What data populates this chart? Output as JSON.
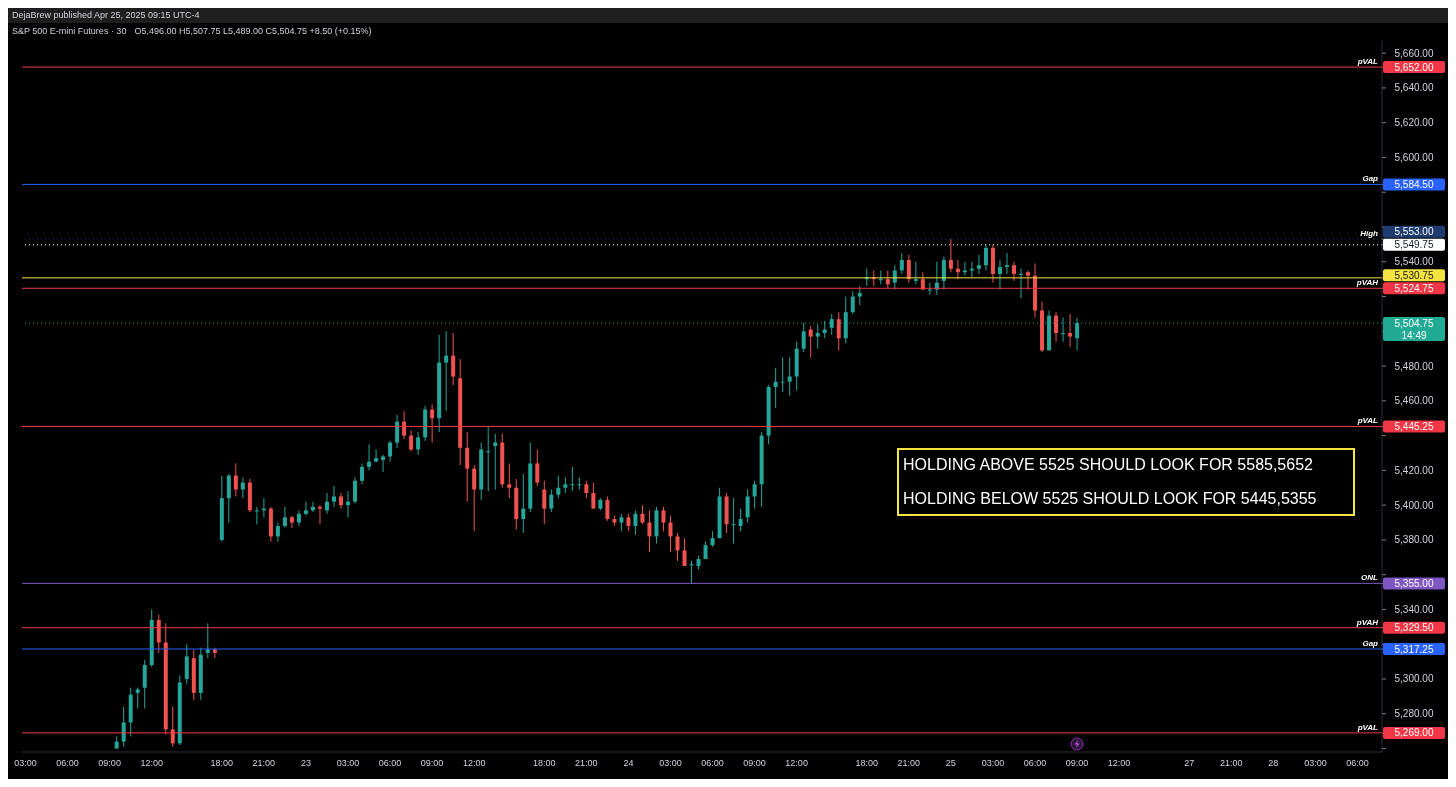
{
  "chart_data": {
    "type": "candlestick",
    "title": "S&P 500 E-mini Futures · 30",
    "subtitle": "O5,496.00 H5,507.75 L5,489.00 C5,504.75 +8.50 (+0.15%)",
    "annotations": [
      "DejaBrew published Apr 25, 2025 09:15 UTC-4",
      "HOLDING ABOVE 5525 SHOULD LOOK FOR 5585,5652",
      "HOLDING BELOW 5525 SHOULD LOOK FOR 5445,5355",
      "14:49"
    ],
    "categories": [
      "03:00",
      null,
      null,
      null,
      null,
      null,
      "06:00",
      null,
      null,
      null,
      null,
      null,
      "09:00",
      null,
      null,
      null,
      null,
      null,
      "12:00",
      null,
      null,
      null,
      null,
      null,
      null,
      null,
      null,
      null,
      "18:00",
      null,
      null,
      null,
      null,
      null,
      "21:00",
      null,
      null,
      null,
      null,
      null,
      "23",
      null,
      null,
      null,
      null,
      null,
      "03:00",
      null,
      null,
      null,
      null,
      null,
      "06:00",
      null,
      null,
      null,
      null,
      null,
      "09:00",
      null,
      null,
      null,
      null,
      null,
      "12:00",
      null,
      null,
      null,
      null,
      null,
      null,
      null,
      null,
      null,
      "18:00",
      null,
      null,
      null,
      null,
      null,
      "21:00",
      null,
      null,
      null,
      null,
      null,
      "24",
      null,
      null,
      null,
      null,
      null,
      "03:00",
      null,
      null,
      null,
      null,
      null,
      "06:00",
      null,
      null,
      null,
      null,
      null,
      "09:00",
      null,
      null,
      null,
      null,
      null,
      "12:00",
      null,
      null,
      null,
      null,
      null,
      null,
      null,
      null,
      null,
      "18:00",
      null,
      null,
      null,
      null,
      null,
      "21:00",
      null,
      null,
      null,
      null,
      null,
      "25",
      null,
      null,
      null,
      null,
      null,
      "03:00",
      null,
      null,
      null,
      null,
      null,
      "06:00",
      null,
      null,
      null,
      null,
      null,
      "09:00",
      null,
      null,
      null,
      null,
      null,
      "12:00",
      null,
      null,
      null,
      null,
      null,
      null,
      null,
      null,
      null,
      "27",
      null,
      null,
      null,
      null,
      null,
      "21:00",
      null,
      null,
      null,
      null,
      null,
      "28",
      null,
      null,
      null,
      null,
      null,
      "03:00",
      null,
      null,
      null,
      null,
      null,
      "06:00",
      null,
      null,
      null
    ],
    "ohlc": [
      null,
      null,
      null,
      null,
      null,
      null,
      null,
      null,
      null,
      null,
      null,
      null,
      null,
      [
        5260,
        5267,
        5260,
        5264
      ],
      [
        5264,
        5284,
        5261,
        5275
      ],
      [
        5275,
        5295,
        5267,
        5291
      ],
      [
        5292,
        5295,
        5283,
        5294
      ],
      [
        5295,
        5311,
        5283,
        5308
      ],
      [
        5308,
        5340,
        5307,
        5334
      ],
      [
        5334,
        5337,
        5315,
        5321
      ],
      [
        5321,
        5332,
        5268,
        5271
      ],
      [
        5271,
        5284,
        5261,
        5263
      ],
      [
        5263,
        5302,
        5262,
        5298
      ],
      [
        5300,
        5320,
        5297,
        5313
      ],
      [
        5312,
        5317,
        5288,
        5292
      ],
      [
        5292,
        5318,
        5288,
        5314
      ],
      [
        5315,
        5332,
        5312,
        5317
      ],
      [
        5317,
        5318,
        5312,
        5315
      ],
      [
        5380,
        5417,
        5379,
        5404
      ],
      [
        5404,
        5418,
        5390,
        5417
      ],
      [
        5417,
        5424,
        5405,
        5409
      ],
      [
        5409,
        5416,
        5404,
        5413
      ],
      [
        5413,
        5415,
        5396,
        5397
      ],
      [
        5397,
        5399,
        5389,
        5397
      ],
      [
        5397,
        5404,
        5393,
        5398
      ],
      [
        5398,
        5399,
        5379,
        5382
      ],
      [
        5382,
        5390,
        5379,
        5388
      ],
      [
        5388,
        5399,
        5387,
        5393
      ],
      [
        5393,
        5394,
        5387,
        5390
      ],
      [
        5390,
        5397,
        5388,
        5395
      ],
      [
        5395,
        5402,
        5394,
        5397
      ],
      [
        5397,
        5402,
        5396,
        5399
      ],
      [
        5399,
        5400,
        5389,
        5398
      ],
      [
        5397,
        5407,
        5395,
        5402
      ],
      [
        5402,
        5411,
        5399,
        5405
      ],
      [
        5405,
        5407,
        5398,
        5400
      ],
      [
        5400,
        5408,
        5393,
        5402
      ],
      [
        5402,
        5416,
        5401,
        5414
      ],
      [
        5414,
        5424,
        5412,
        5422
      ],
      [
        5422,
        5435,
        5420,
        5425
      ],
      [
        5425,
        5432,
        5425,
        5427
      ],
      [
        5426,
        5429,
        5419,
        5428
      ],
      [
        5428,
        5437,
        5425,
        5436
      ],
      [
        5436,
        5452,
        5433,
        5448
      ],
      [
        5448,
        5454,
        5438,
        5440
      ],
      [
        5440,
        5443,
        5431,
        5432
      ],
      [
        5432,
        5442,
        5429,
        5439
      ],
      [
        5439,
        5457,
        5437,
        5455
      ],
      [
        5455,
        5458,
        5436,
        5450
      ],
      [
        5450,
        5498,
        5442,
        5482
      ],
      [
        5482,
        5500,
        5454,
        5486
      ],
      [
        5486,
        5499,
        5469,
        5474
      ],
      [
        5473,
        5484,
        5423,
        5433
      ],
      [
        5433,
        5442,
        5402,
        5421
      ],
      [
        5421,
        5423,
        5385,
        5409
      ],
      [
        5409,
        5436,
        5403,
        5432
      ],
      [
        5431,
        5445,
        5408,
        5431
      ],
      [
        5434,
        5441,
        5409,
        5436
      ],
      [
        5436,
        5441,
        5410,
        5412
      ],
      [
        5412,
        5424,
        5404,
        5410
      ],
      [
        5410,
        5415,
        5386,
        5392
      ],
      [
        5392,
        5418,
        5384,
        5398
      ],
      [
        5398,
        5436,
        5396,
        5424
      ],
      [
        5424,
        5432,
        5411,
        5413
      ],
      [
        5409,
        5414,
        5389,
        5398
      ],
      [
        5398,
        5409,
        5396,
        5406
      ],
      [
        5406,
        5417,
        5404,
        5410
      ],
      [
        5410,
        5416,
        5407,
        5412
      ],
      [
        5412,
        5422,
        5408,
        5412
      ],
      [
        5412,
        5416,
        5409,
        5412
      ],
      [
        5412,
        5414,
        5404,
        5407
      ],
      [
        5407,
        5413,
        5398,
        5398
      ],
      [
        5398,
        5404,
        5397,
        5403
      ],
      [
        5403,
        5405,
        5391,
        5392
      ],
      [
        5392,
        5394,
        5388,
        5390
      ],
      [
        5390,
        5395,
        5385,
        5393
      ],
      [
        5393,
        5395,
        5385,
        5388
      ],
      [
        5388,
        5397,
        5383,
        5395
      ],
      [
        5395,
        5400,
        5389,
        5390
      ],
      [
        5390,
        5397,
        5373,
        5382
      ],
      [
        5382,
        5399,
        5378,
        5397
      ],
      [
        5397,
        5399,
        5385,
        5390
      ],
      [
        5390,
        5394,
        5373,
        5382
      ],
      [
        5382,
        5384,
        5368,
        5374
      ],
      [
        5374,
        5381,
        5365,
        5365
      ],
      [
        5366,
        5368,
        5355,
        5366
      ],
      [
        5365,
        5371,
        5363,
        5369
      ],
      [
        5369,
        5379,
        5369,
        5377
      ],
      [
        5377,
        5385,
        5376,
        5381
      ],
      [
        5381,
        5410,
        5381,
        5405
      ],
      [
        5405,
        5407,
        5384,
        5389
      ],
      [
        5389,
        5404,
        5378,
        5389
      ],
      [
        5388,
        5398,
        5385,
        5392
      ],
      [
        5393,
        5409,
        5390,
        5405
      ],
      [
        5405,
        5414,
        5398,
        5412
      ],
      [
        5412,
        5442,
        5399,
        5440
      ],
      [
        5440,
        5469,
        5435,
        5468
      ],
      [
        5468,
        5479,
        5456,
        5471
      ],
      [
        5471,
        5485,
        5465,
        5471
      ],
      [
        5471,
        5485,
        5463,
        5474
      ],
      [
        5474,
        5494,
        5466,
        5490
      ],
      [
        5490,
        5505,
        5488,
        5500
      ],
      [
        5501,
        5503,
        5485,
        5497
      ],
      [
        5497,
        5504,
        5490,
        5499
      ],
      [
        5499,
        5506,
        5496,
        5501
      ],
      [
        5502,
        5510,
        5498,
        5507
      ],
      [
        5507,
        5511,
        5489,
        5496
      ],
      [
        5496,
        5520,
        5493,
        5511
      ],
      [
        5511,
        5523,
        5510,
        5520
      ],
      [
        5520,
        5526,
        5515,
        5522
      ],
      [
        5530,
        5536,
        5526,
        5531
      ],
      [
        5531,
        5535,
        5526,
        5530
      ],
      [
        5530,
        5535,
        5527,
        5530
      ],
      [
        5530,
        5535,
        5525,
        5527
      ],
      [
        5528,
        5538,
        5524,
        5535
      ],
      [
        5535,
        5545,
        5533,
        5541
      ],
      [
        5541,
        5544,
        5528,
        5530
      ],
      [
        5529,
        5540,
        5527,
        5530
      ],
      [
        5530,
        5534,
        5524,
        5524
      ],
      [
        5524,
        5528,
        5521,
        5524
      ],
      [
        5524,
        5540,
        5521,
        5528
      ],
      [
        5529,
        5543,
        5524,
        5541
      ],
      [
        5541,
        5553,
        5534,
        5536
      ],
      [
        5536,
        5541,
        5530,
        5534
      ],
      [
        5534,
        5540,
        5532,
        5535
      ],
      [
        5535,
        5540,
        5531,
        5536
      ],
      [
        5536,
        5544,
        5533,
        5538
      ],
      [
        5538,
        5550,
        5535,
        5548
      ],
      [
        5548,
        5550,
        5528,
        5533
      ],
      [
        5533,
        5541,
        5524,
        5537
      ],
      [
        5537,
        5545,
        5533,
        5538
      ],
      [
        5538,
        5540,
        5529,
        5533
      ],
      [
        5533,
        5536,
        5519,
        5533
      ],
      [
        5534,
        5535,
        5524,
        5532
      ],
      [
        5532,
        5539,
        5508,
        5512
      ],
      [
        5512,
        5517,
        5488,
        5489
      ],
      [
        5489,
        5512,
        5489,
        5509
      ],
      [
        5509,
        5511,
        5494,
        5499
      ],
      [
        5499,
        5508,
        5494,
        5499
      ],
      [
        5499,
        5510,
        5491,
        5497
      ],
      [
        5496,
        5507.75,
        5489,
        5504.75
      ],
      null,
      null,
      null,
      null,
      null,
      null,
      null,
      null,
      null,
      null,
      null,
      null,
      null,
      null,
      null,
      null,
      null,
      null,
      null,
      null,
      null,
      null,
      null,
      null,
      null,
      null,
      null,
      null,
      null,
      null,
      null,
      null,
      null,
      null,
      null,
      null,
      null,
      null,
      null,
      null,
      null,
      null,
      null
    ],
    "ylim": [
      5258,
      5667
    ],
    "yticks": [
      {
        "value": 5260,
        "label": null
      },
      {
        "value": 5269,
        "label": "5,269.00"
      },
      {
        "value": 5280,
        "label": "5,280.00"
      },
      {
        "value": 5300,
        "label": "5,300.00"
      },
      {
        "value": 5317.25,
        "label": "5,317.25"
      },
      {
        "value": 5320,
        "label": null
      },
      {
        "value": 5329.5,
        "label": "5,329.50"
      },
      {
        "value": 5340,
        "label": "5,340.00"
      },
      {
        "value": 5355,
        "label": "5,355.00"
      },
      {
        "value": 5360,
        "label": null
      },
      {
        "value": 5380,
        "label": "5,380.00"
      },
      {
        "value": 5400,
        "label": "5,400.00"
      },
      {
        "value": 5420,
        "label": "5,420.00"
      },
      {
        "value": 5440,
        "label": null
      },
      {
        "value": 5445.25,
        "label": "5,445.25"
      },
      {
        "value": 5460,
        "label": "5,460.00"
      },
      {
        "value": 5480,
        "label": "5,480.00"
      },
      {
        "value": 5500,
        "label": null
      },
      {
        "value": 5504.75,
        "label": "5,504.75"
      },
      {
        "value": 5520,
        "label": null
      },
      {
        "value": 5524.75,
        "label": "5,524.75"
      },
      {
        "value": 5530.75,
        "label": "5,530.75"
      },
      {
        "value": 5540,
        "label": "5,540.00"
      },
      {
        "value": 5549.75,
        "label": "5,549.75"
      },
      {
        "value": 5553,
        "label": "5,553.00"
      },
      {
        "value": 5560,
        "label": null
      },
      {
        "value": 5580,
        "label": null
      },
      {
        "value": 5584.5,
        "label": "5,584.50"
      },
      {
        "value": 5600,
        "label": "5,600.00"
      },
      {
        "value": 5620,
        "label": "5,620.00"
      },
      {
        "value": 5640,
        "label": "5,640.00"
      },
      {
        "value": 5652,
        "label": "5,652.00"
      },
      {
        "value": 5660,
        "label": "5,660.00"
      }
    ],
    "ref_lines": [
      {
        "axis": "y",
        "value": 5652,
        "label": "pVAL",
        "color": "#f23645",
        "line_style": "solid"
      },
      {
        "axis": "y",
        "value": 5584.5,
        "label": "Gap",
        "color": "#2962ff",
        "line_style": "solid"
      },
      {
        "axis": "y",
        "value": 5553,
        "label": "High",
        "color": "#1e3a6e",
        "line_style": "dotted"
      },
      {
        "axis": "y",
        "value": 5549.75,
        "label": null,
        "color": "#ffffff",
        "line_style": "dotted"
      },
      {
        "axis": "y",
        "value": 5530.75,
        "label": null,
        "color": "#f5e342",
        "line_style": "solid"
      },
      {
        "axis": "y",
        "value": 5524.75,
        "label": "pVAH",
        "color": "#f23645",
        "line_style": "solid"
      },
      {
        "axis": "y",
        "value": 5504.75,
        "label": null,
        "color": "#22ab94",
        "line_style": "dotted"
      },
      {
        "axis": "y",
        "value": 5445.25,
        "label": "pVAL",
        "color": "#f23645",
        "line_style": "solid"
      },
      {
        "axis": "y",
        "value": 5355,
        "label": "ONL",
        "color": "#7e57c2",
        "line_style": "solid"
      },
      {
        "axis": "y",
        "value": 5329.5,
        "label": "pVAH",
        "color": "#f23645",
        "line_style": "solid"
      },
      {
        "axis": "y",
        "value": 5317.25,
        "label": "Gap",
        "color": "#2962ff",
        "line_style": "solid"
      },
      {
        "axis": "y",
        "value": 5269,
        "label": "pVAL",
        "color": "#f23645",
        "line_style": "solid"
      }
    ]
  }
}
